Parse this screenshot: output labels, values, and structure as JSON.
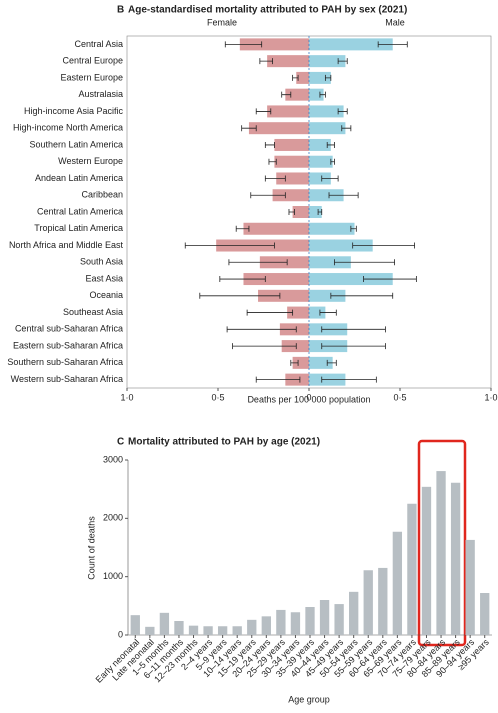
{
  "chart_data": [
    {
      "type": "butterfly",
      "panel": "B",
      "title": "Age-standardised mortality attributed to PAH by sex (2021)",
      "x_label": "Deaths per 100 000 population",
      "categories": [
        "Central Asia",
        "Central Europe",
        "Eastern Europe",
        "Australasia",
        "High-income Asia Pacific",
        "High-income North America",
        "Southern Latin America",
        "Western Europe",
        "Andean Latin America",
        "Caribbean",
        "Central Latin America",
        "Tropical Latin America",
        "North Africa and Middle East",
        "South Asia",
        "East Asia",
        "Oceania",
        "Southeast Asia",
        "Central sub-Saharan Africa",
        "Eastern sub-Saharan Africa",
        "Southern sub-Saharan Africa",
        "Western sub-Saharan Africa"
      ],
      "series": [
        {
          "name": "Female",
          "color": "#d99a9b",
          "values": [
            -0.38,
            -0.23,
            -0.07,
            -0.13,
            -0.23,
            -0.33,
            -0.19,
            -0.19,
            -0.18,
            -0.2,
            -0.09,
            -0.36,
            -0.51,
            -0.27,
            -0.36,
            -0.28,
            -0.12,
            -0.16,
            -0.15,
            -0.09,
            -0.13
          ],
          "ci_low": [
            -0.46,
            -0.27,
            -0.09,
            -0.15,
            -0.29,
            -0.37,
            -0.24,
            -0.22,
            -0.24,
            -0.32,
            -0.11,
            -0.4,
            -0.68,
            -0.44,
            -0.49,
            -0.6,
            -0.34,
            -0.45,
            -0.42,
            -0.1,
            -0.29
          ],
          "ci_high": [
            -0.26,
            -0.2,
            -0.06,
            -0.1,
            -0.21,
            -0.29,
            -0.19,
            -0.18,
            -0.13,
            -0.13,
            -0.08,
            -0.33,
            -0.19,
            -0.12,
            -0.24,
            -0.16,
            -0.09,
            -0.07,
            -0.07,
            -0.06,
            -0.05
          ]
        },
        {
          "name": "Male",
          "color": "#9ad2e1",
          "values": [
            0.46,
            0.2,
            0.12,
            0.08,
            0.19,
            0.2,
            0.12,
            0.13,
            0.12,
            0.19,
            0.07,
            0.25,
            0.35,
            0.23,
            0.46,
            0.2,
            0.09,
            0.21,
            0.21,
            0.13,
            0.2
          ],
          "ci_low": [
            0.38,
            0.16,
            0.09,
            0.06,
            0.16,
            0.18,
            0.1,
            0.12,
            0.07,
            0.11,
            0.05,
            0.23,
            0.24,
            0.14,
            0.3,
            0.12,
            0.06,
            0.07,
            0.07,
            0.1,
            0.07
          ],
          "ci_high": [
            0.54,
            0.21,
            0.12,
            0.09,
            0.21,
            0.23,
            0.14,
            0.14,
            0.16,
            0.27,
            0.07,
            0.26,
            0.58,
            0.47,
            0.59,
            0.46,
            0.15,
            0.42,
            0.42,
            0.15,
            0.37
          ]
        }
      ],
      "xlim": [
        -1,
        1
      ],
      "xticks": [
        {
          "value": -1,
          "label": "1·0"
        },
        {
          "value": -0.5,
          "label": "0·5"
        },
        0,
        {
          "value": 0.5,
          "label": "0·5"
        },
        {
          "value": 1,
          "label": "1·0"
        }
      ]
    },
    {
      "type": "bar",
      "panel": "C",
      "title": "Mortality attributed to PAH by age (2021)",
      "x_label": "Age group",
      "y_label": "Count of deaths",
      "color": "#b7bec3",
      "categories": [
        "Early neonatal",
        "Late neonatal",
        "1–5 months",
        "6–11 months",
        "12–23 months",
        "2–4 years",
        "5–9 years",
        "10–14 years",
        "15–19 years",
        "20–24 years",
        "25–29 years",
        "30–34 years",
        "35–39 years",
        "40–44 years",
        "45–49 years",
        "50–54 years",
        "55–59 years",
        "60–64 years",
        "65–69 years",
        "70–74 years",
        "75–79 years",
        "80–84 years",
        "85–89 years",
        "90–94 years",
        "≥95 years"
      ],
      "values": [
        340,
        140,
        380,
        240,
        160,
        150,
        150,
        150,
        260,
        320,
        430,
        390,
        480,
        600,
        530,
        740,
        1110,
        1150,
        1770,
        2250,
        2540,
        2810,
        2610,
        1630,
        720
      ],
      "ylim": [
        0,
        3000
      ],
      "yticks": [
        0,
        1000,
        2000,
        3000
      ]
    }
  ]
}
